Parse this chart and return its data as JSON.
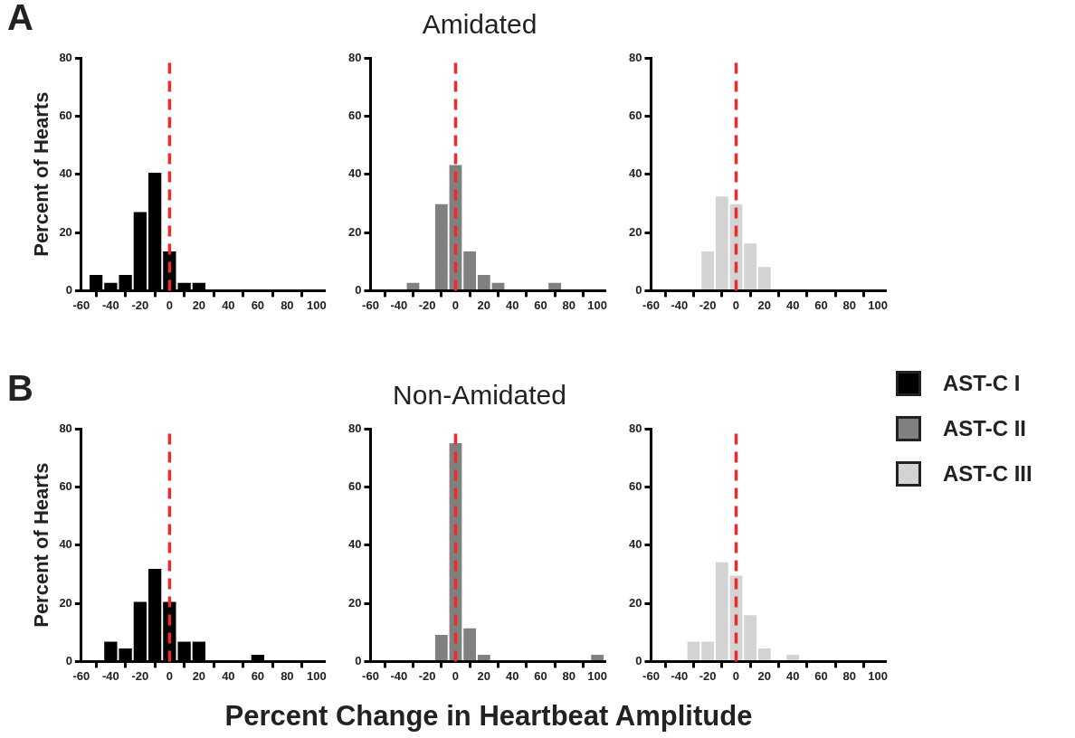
{
  "chart_data": [
    {
      "type": "histogram",
      "ylabel": "Percent of Hearts",
      "annotations": [
        "A"
      ],
      "bins": [
        -55,
        -45,
        -35,
        -25,
        -15,
        -5,
        5,
        15,
        25,
        35,
        45,
        55,
        65,
        75,
        85,
        95,
        105
      ],
      "series": [
        {
          "name": "AST-C I",
          "color": "#000000",
          "values": [
            5.4,
            2.7,
            5.4,
            27,
            40.5,
            13.5,
            2.7,
            2.7,
            0,
            0,
            0,
            0,
            0,
            0,
            0,
            0
          ]
        }
      ],
      "xlim": [
        -60,
        105
      ],
      "xticks": [
        -60,
        -40,
        -20,
        0,
        20,
        40,
        60,
        80,
        100
      ],
      "ylim": [
        0,
        80
      ],
      "yticks": [
        0,
        20,
        40,
        60,
        80
      ],
      "ref_lines": [
        {
          "axis": "x",
          "value": 0,
          "color": "#ee2a2a",
          "line_style": "dashed"
        }
      ],
      "legend": "right"
    },
    {
      "type": "histogram",
      "title": "Amidated",
      "bins": [
        -55,
        -45,
        -35,
        -25,
        -15,
        -5,
        5,
        15,
        25,
        35,
        45,
        55,
        65,
        75,
        85,
        95,
        105
      ],
      "series": [
        {
          "name": "AST-C II",
          "color": "#808080",
          "values": [
            0,
            0,
            2.7,
            0,
            29.7,
            43.2,
            13.5,
            5.4,
            2.7,
            0,
            0,
            0,
            2.7,
            0,
            0,
            0
          ]
        }
      ],
      "xlim": [
        -60,
        105
      ],
      "xticks": [
        -60,
        -40,
        -20,
        0,
        20,
        40,
        60,
        80,
        100
      ],
      "ylim": [
        0,
        80
      ],
      "yticks": [
        0,
        20,
        40,
        60,
        80
      ],
      "ref_lines": [
        {
          "axis": "x",
          "value": 0,
          "color": "#ee2a2a",
          "line_style": "dashed"
        }
      ],
      "legend": "right"
    },
    {
      "type": "histogram",
      "bins": [
        -55,
        -45,
        -35,
        -25,
        -15,
        -5,
        5,
        15,
        25,
        35,
        45,
        55,
        65,
        75,
        85,
        95,
        105
      ],
      "series": [
        {
          "name": "AST-C III",
          "color": "#d3d3d3",
          "values": [
            0,
            0,
            0,
            13.5,
            32.4,
            29.7,
            16.2,
            8.1,
            0,
            0,
            0,
            0,
            0,
            0,
            0,
            0
          ]
        }
      ],
      "xlim": [
        -60,
        105
      ],
      "xticks": [
        -60,
        -40,
        -20,
        0,
        20,
        40,
        60,
        80,
        100
      ],
      "ylim": [
        0,
        80
      ],
      "yticks": [
        0,
        20,
        40,
        60,
        80
      ],
      "ref_lines": [
        {
          "axis": "x",
          "value": 0,
          "color": "#ee2a2a",
          "line_style": "dashed"
        }
      ],
      "legend": "right"
    },
    {
      "type": "histogram",
      "ylabel": "Percent of Hearts",
      "annotations": [
        "B"
      ],
      "bins": [
        -55,
        -45,
        -35,
        -25,
        -15,
        -5,
        5,
        15,
        25,
        35,
        45,
        55,
        65,
        75,
        85,
        95,
        105
      ],
      "series": [
        {
          "name": "AST-C I",
          "color": "#000000",
          "values": [
            0,
            6.8,
            4.5,
            20.5,
            31.8,
            20.5,
            6.8,
            6.8,
            0,
            0,
            0,
            2.3,
            0,
            0,
            0,
            0
          ]
        }
      ],
      "xlim": [
        -60,
        105
      ],
      "xticks": [
        -60,
        -40,
        -20,
        0,
        20,
        40,
        60,
        80,
        100
      ],
      "ylim": [
        0,
        80
      ],
      "yticks": [
        0,
        20,
        40,
        60,
        80
      ],
      "ref_lines": [
        {
          "axis": "x",
          "value": 0,
          "color": "#ee2a2a",
          "line_style": "dashed"
        }
      ],
      "legend": "right"
    },
    {
      "type": "histogram",
      "title": "Non-Amidated",
      "xlabel": "Percent Change in Heartbeat Amplitude",
      "bins": [
        -55,
        -45,
        -35,
        -25,
        -15,
        -5,
        5,
        15,
        25,
        35,
        45,
        55,
        65,
        75,
        85,
        95,
        105
      ],
      "series": [
        {
          "name": "AST-C II",
          "color": "#808080",
          "values": [
            0,
            0,
            0,
            0,
            9.1,
            75,
            11.4,
            2.3,
            0,
            0,
            0,
            0,
            0,
            0,
            0,
            2.3
          ]
        }
      ],
      "xlim": [
        -60,
        105
      ],
      "xticks": [
        -60,
        -40,
        -20,
        0,
        20,
        40,
        60,
        80,
        100
      ],
      "ylim": [
        0,
        80
      ],
      "yticks": [
        0,
        20,
        40,
        60,
        80
      ],
      "ref_lines": [
        {
          "axis": "x",
          "value": 0,
          "color": "#ee2a2a",
          "line_style": "dashed"
        }
      ],
      "legend": "right"
    },
    {
      "type": "histogram",
      "bins": [
        -55,
        -45,
        -35,
        -25,
        -15,
        -5,
        5,
        15,
        25,
        35,
        45,
        55,
        65,
        75,
        85,
        95,
        105
      ],
      "series": [
        {
          "name": "AST-C III",
          "color": "#d3d3d3",
          "values": [
            0,
            0,
            6.8,
            6.8,
            34.1,
            29.5,
            15.9,
            4.5,
            0,
            2.3,
            0,
            0,
            0,
            0,
            0,
            0
          ]
        }
      ],
      "xlim": [
        -60,
        105
      ],
      "xticks": [
        -60,
        -40,
        -20,
        0,
        20,
        40,
        60,
        80,
        100
      ],
      "ylim": [
        0,
        80
      ],
      "yticks": [
        0,
        20,
        40,
        60,
        80
      ],
      "ref_lines": [
        {
          "axis": "x",
          "value": 0,
          "color": "#ee2a2a",
          "line_style": "dashed"
        }
      ],
      "legend": "right"
    }
  ]
}
